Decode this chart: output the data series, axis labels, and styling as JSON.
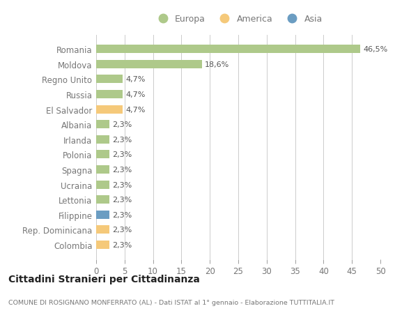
{
  "countries": [
    "Romania",
    "Moldova",
    "Regno Unito",
    "Russia",
    "El Salvador",
    "Albania",
    "Irlanda",
    "Polonia",
    "Spagna",
    "Ucraina",
    "Lettonia",
    "Filippine",
    "Rep. Dominicana",
    "Colombia"
  ],
  "values": [
    46.5,
    18.6,
    4.7,
    4.7,
    4.7,
    2.3,
    2.3,
    2.3,
    2.3,
    2.3,
    2.3,
    2.3,
    2.3,
    2.3
  ],
  "labels": [
    "46,5%",
    "18,6%",
    "4,7%",
    "4,7%",
    "4,7%",
    "2,3%",
    "2,3%",
    "2,3%",
    "2,3%",
    "2,3%",
    "2,3%",
    "2,3%",
    "2,3%",
    "2,3%"
  ],
  "categories": [
    "Europa",
    "Europa",
    "Europa",
    "Europa",
    "America",
    "Europa",
    "Europa",
    "Europa",
    "Europa",
    "Europa",
    "Europa",
    "Asia",
    "America",
    "America"
  ],
  "colors": {
    "Europa": "#aec98a",
    "America": "#f5c97a",
    "Asia": "#6b9dc2"
  },
  "legend_order": [
    "Europa",
    "America",
    "Asia"
  ],
  "title": "Cittadini Stranieri per Cittadinanza",
  "subtitle": "COMUNE DI ROSIGNANO MONFERRATO (AL) - Dati ISTAT al 1° gennaio - Elaborazione TUTTITALIA.IT",
  "xlim": [
    0,
    50
  ],
  "xticks": [
    0,
    5,
    10,
    15,
    20,
    25,
    30,
    35,
    40,
    45,
    50
  ],
  "bg_color": "#ffffff",
  "grid_color": "#cccccc",
  "bar_height": 0.55,
  "text_color": "#777777",
  "label_color": "#555555",
  "title_color": "#222222",
  "subtitle_color": "#777777"
}
